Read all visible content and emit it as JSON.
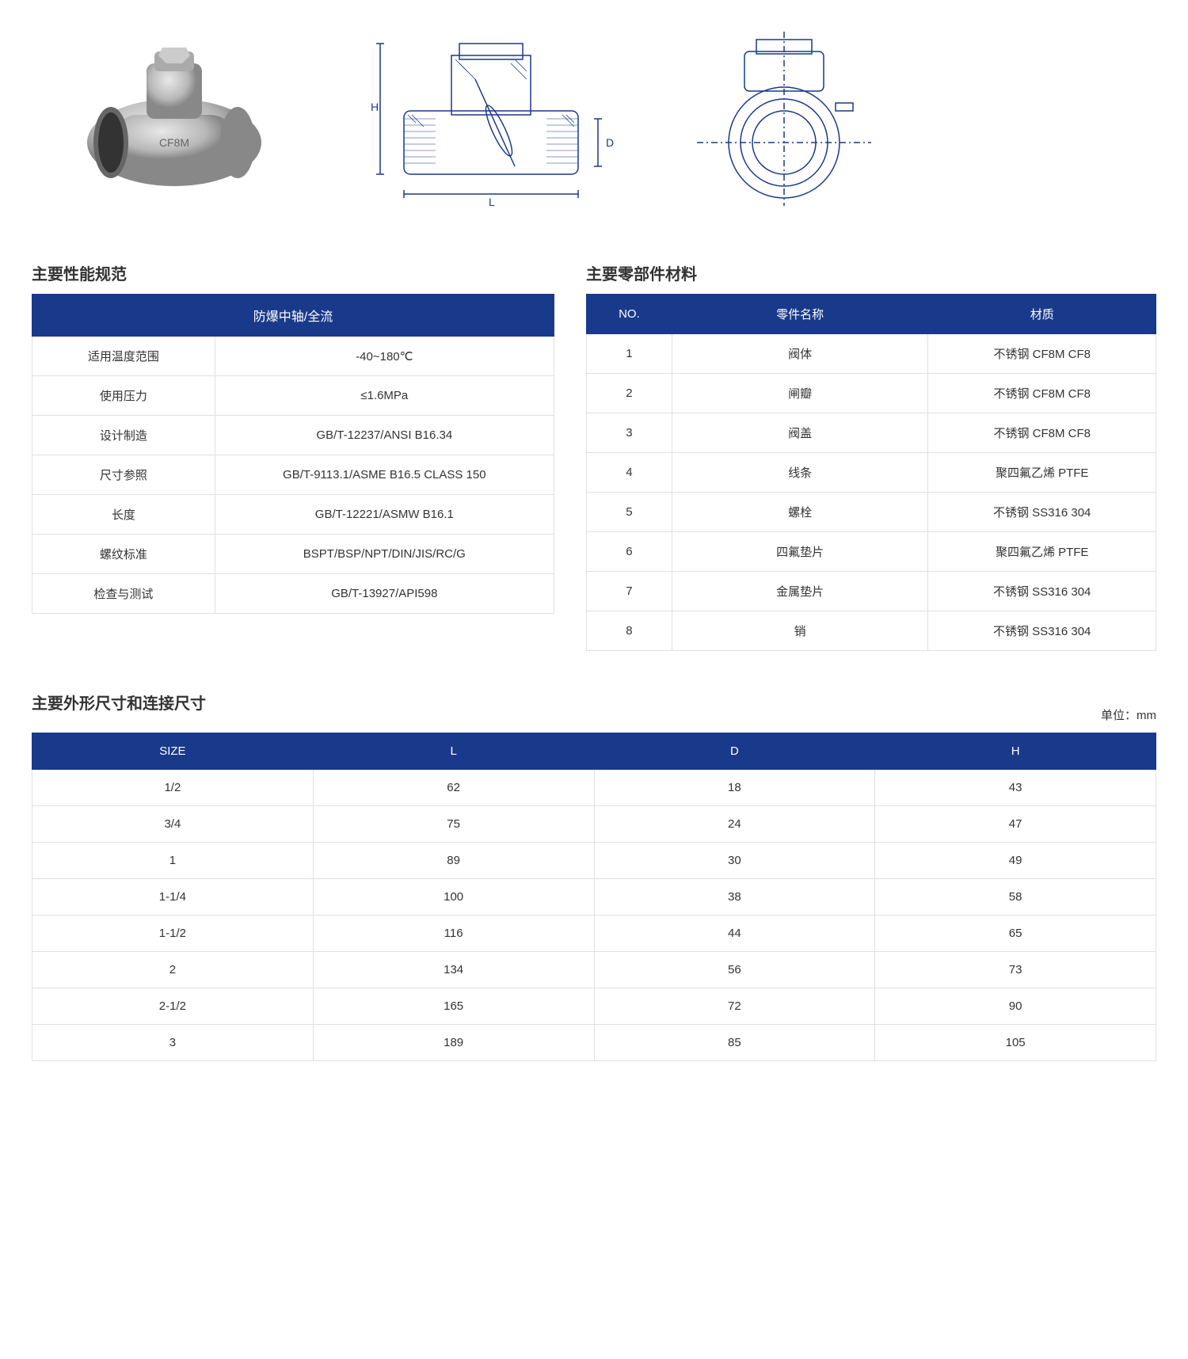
{
  "colors": {
    "header_bg": "#19398a",
    "header_text": "#ffffff",
    "border": "#e0e0e0",
    "text": "#333333",
    "background": "#ffffff"
  },
  "images": {
    "product_label": "product-photo",
    "section_label": "section-drawing",
    "side_label": "side-drawing",
    "dim_labels": {
      "H": "H",
      "D": "D",
      "L": "L"
    }
  },
  "spec_section": {
    "title": "主要性能规范",
    "header": "防爆中轴/全流",
    "rows": [
      {
        "label": "适用温度范围",
        "value": "-40~180℃"
      },
      {
        "label": "使用压力",
        "value": "≤1.6MPa"
      },
      {
        "label": "设计制造",
        "value": "GB/T-12237/ANSI B16.34"
      },
      {
        "label": "尺寸参照",
        "value": "GB/T-9113.1/ASME B16.5 CLASS 150"
      },
      {
        "label": "长度",
        "value": "GB/T-12221/ASMW B16.1"
      },
      {
        "label": "螺纹标准",
        "value": "BSPT/BSP/NPT/DIN/JIS/RC/G"
      },
      {
        "label": "检查与测试",
        "value": "GB/T-13927/API598"
      }
    ]
  },
  "parts_section": {
    "title": "主要零部件材料",
    "headers": [
      "NO.",
      "零件名称",
      "材质"
    ],
    "rows": [
      {
        "no": "1",
        "name": "阀体",
        "mat": "不锈钢 CF8M CF8"
      },
      {
        "no": "2",
        "name": "闸瓣",
        "mat": "不锈钢 CF8M CF8"
      },
      {
        "no": "3",
        "name": "阀盖",
        "mat": "不锈钢 CF8M CF8"
      },
      {
        "no": "4",
        "name": "线条",
        "mat": "聚四氟乙烯 PTFE"
      },
      {
        "no": "5",
        "name": "螺栓",
        "mat": "不锈钢 SS316 304"
      },
      {
        "no": "6",
        "name": "四氟垫片",
        "mat": "聚四氟乙烯 PTFE"
      },
      {
        "no": "7",
        "name": "金属垫片",
        "mat": "不锈钢 SS316 304"
      },
      {
        "no": "8",
        "name": "销",
        "mat": "不锈钢 SS316 304"
      }
    ]
  },
  "dims_section": {
    "title": "主要外形尺寸和连接尺寸",
    "unit": "单位：mm",
    "headers": [
      "SIZE",
      "L",
      "D",
      "H"
    ],
    "rows": [
      {
        "size": "1/2",
        "L": "62",
        "D": "18",
        "H": "43"
      },
      {
        "size": "3/4",
        "L": "75",
        "D": "24",
        "H": "47"
      },
      {
        "size": "1",
        "L": "89",
        "D": "30",
        "H": "49"
      },
      {
        "size": "1-1/4",
        "L": "100",
        "D": "38",
        "H": "58"
      },
      {
        "size": "1-1/2",
        "L": "116",
        "D": "44",
        "H": "65"
      },
      {
        "size": "2",
        "L": "134",
        "D": "56",
        "H": "73"
      },
      {
        "size": "2-1/2",
        "L": "165",
        "D": "72",
        "H": "90"
      },
      {
        "size": "3",
        "L": "189",
        "D": "85",
        "H": "105"
      }
    ]
  }
}
